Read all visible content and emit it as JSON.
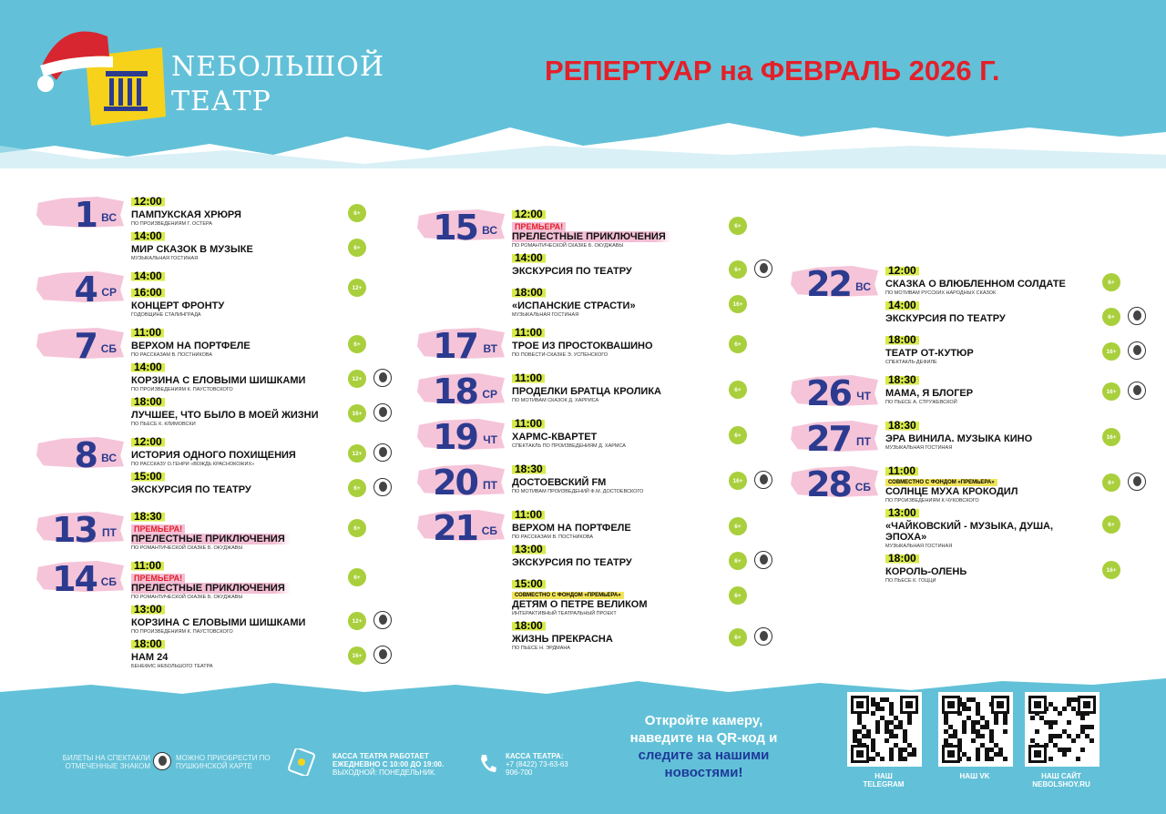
{
  "header": {
    "logo": [
      "NЕБОЛЬШОЙ",
      "ТЕАТР"
    ],
    "title": "РЕПЕРТУАР на ФЕВРАЛЬ 2026 Г."
  },
  "columns": [
    {
      "days": [
        {
          "day": "1",
          "weekday": "ВС",
          "events": [
            {
              "times": [
                "12:00"
              ],
              "title": "ПАМПУКСКАЯ ХРЮРЯ",
              "subtitle": "ПО ПРОИЗВЕДЕНИЯМ Г. ОСТЕРА",
              "age": "6+",
              "pushkin": false
            },
            {
              "times": [
                "14:00"
              ],
              "title": "МИР СКАЗОК В МУЗЫКЕ",
              "subtitle": "МУЗЫКАЛЬНАЯ ГОСТИНАЯ",
              "age": "6+",
              "pushkin": false
            }
          ]
        },
        {
          "day": "4",
          "weekday": "СР",
          "events": [
            {
              "times": [
                "14:00",
                "16:00"
              ],
              "title": "КОНЦЕРТ ФРОНТУ",
              "subtitle": "ГОДОВЩИНЕ СТАЛИНГРАДА",
              "age": "12+",
              "pushkin": false
            }
          ]
        },
        {
          "day": "7",
          "weekday": "СБ",
          "events": [
            {
              "times": [
                "11:00"
              ],
              "title": "ВЕРХОМ НА ПОРТФЕЛЕ",
              "subtitle": "ПО РАССКАЗАМ В. ПОСТНИКОВА",
              "age": "6+",
              "pushkin": false
            },
            {
              "times": [
                "14:00"
              ],
              "title": "КОРЗИНА С ЕЛОВЫМИ ШИШКАМИ",
              "subtitle": "ПО ПРОИЗВЕДЕНИЯМ К. ПАУСТОВСКОГО",
              "age": "12+",
              "pushkin": true
            },
            {
              "times": [
                "18:00"
              ],
              "title": "ЛУЧШЕЕ, ЧТО БЫЛО В МОЕЙ ЖИЗНИ",
              "subtitle": "ПО ПЬЕСЕ К. КЛИМОВСКИ",
              "age": "16+",
              "pushkin": true
            }
          ]
        },
        {
          "day": "8",
          "weekday": "ВС",
          "events": [
            {
              "times": [
                "12:00"
              ],
              "title": "ИСТОРИЯ ОДНОГО ПОХИЩЕНИЯ",
              "subtitle": "ПО РАССКАЗУ О.ГЕНРИ «ВОЖДЬ КРАСНОКОЖИХ»",
              "age": "12+",
              "pushkin": true
            },
            {
              "times": [
                "15:00"
              ],
              "title": "ЭКСКУРСИЯ ПО ТЕАТРУ",
              "age": "6+",
              "pushkin": true
            }
          ]
        },
        {
          "day": "13",
          "weekday": "ПТ",
          "events": [
            {
              "times": [
                "18:30"
              ],
              "badge": "ПРЕМЬЕРА!",
              "title": "ПРЕЛЕСТНЫЕ ПРИКЛЮЧЕНИЯ",
              "subtitle": "ПО РОМАНТИЧЕСКОЙ СКАЗКЕ Б. ОКУДЖАВЫ",
              "age": "6+",
              "pushkin": false
            }
          ]
        },
        {
          "day": "14",
          "weekday": "СБ",
          "events": [
            {
              "times": [
                "11:00"
              ],
              "badge": "ПРЕМЬЕРА!",
              "title": "ПРЕЛЕСТНЫЕ ПРИКЛЮЧЕНИЯ",
              "subtitle": "ПО РОМАНТИЧЕСКОЙ СКАЗКЕ Б. ОКУДЖАВЫ",
              "age": "6+",
              "pushkin": false
            },
            {
              "times": [
                "13:00"
              ],
              "title": "КОРЗИНА С ЕЛОВЫМИ ШИШКАМИ",
              "subtitle": "ПО ПРОИЗВЕДЕНИЯМ К. ПАУСТОВСКОГО",
              "age": "12+",
              "pushkin": true
            },
            {
              "times": [
                "18:00"
              ],
              "title": "НАМ 24",
              "subtitle": "БЕНЕФИС НЕБОЛЬШОГО ТЕАТРА",
              "age": "16+",
              "pushkin": true
            }
          ]
        }
      ]
    },
    {
      "days": [
        {
          "day": "15",
          "weekday": "ВС",
          "events": [
            {
              "times": [
                "12:00"
              ],
              "badge": "ПРЕМЬЕРА!",
              "title": "ПРЕЛЕСТНЫЕ ПРИКЛЮЧЕНИЯ",
              "subtitle": "ПО РОМАНТИЧЕСКОЙ СКАЗКЕ Б. ОКУДЖАВЫ",
              "age": "6+",
              "pushkin": false
            },
            {
              "times": [
                "14:00"
              ],
              "title": "ЭКСКУРСИЯ ПО ТЕАТРУ",
              "age": "6+",
              "pushkin": true
            },
            {
              "times": [
                "18:00"
              ],
              "title": "«ИСПАНСКИЕ СТРАСТИ»",
              "subtitle": "МУЗЫКАЛЬНАЯ ГОСТИНАЯ",
              "age": "16+",
              "pushkin": false
            }
          ]
        },
        {
          "day": "17",
          "weekday": "ВТ",
          "events": [
            {
              "times": [
                "11:00"
              ],
              "title": "ТРОЕ ИЗ ПРОСТОКВАШИНО",
              "subtitle": "ПО ПОВЕСТИ-СКАЗКЕ Э. УСПЕНСКОГО",
              "age": "6+",
              "pushkin": false
            }
          ]
        },
        {
          "day": "18",
          "weekday": "СР",
          "events": [
            {
              "times": [
                "11:00"
              ],
              "title": "ПРОДЕЛКИ БРАТЦА КРОЛИКА",
              "subtitle": "ПО МОТИВАМ СКАЗОК Д. ХАРРИСА",
              "age": "6+",
              "pushkin": false
            }
          ]
        },
        {
          "day": "19",
          "weekday": "ЧТ",
          "events": [
            {
              "times": [
                "11:00"
              ],
              "title": "ХАРМС-КВАРТЕТ",
              "subtitle": "СПЕКТАКЛЬ ПО ПРОИЗВЕДЕНИЯМ Д. ХАРМСА",
              "age": "6+",
              "pushkin": false
            }
          ]
        },
        {
          "day": "20",
          "weekday": "ПТ",
          "events": [
            {
              "times": [
                "18:30"
              ],
              "title": "ДОСТОЕВСКИЙ FM",
              "subtitle": "ПО МОТИВАМ ПРОИЗВЕДЕНИЙ Ф.М. ДОСТОЕВСКОГО",
              "age": "16+",
              "pushkin": true
            }
          ]
        },
        {
          "day": "21",
          "weekday": "СБ",
          "events": [
            {
              "times": [
                "11:00"
              ],
              "title": "ВЕРХОМ НА ПОРТФЕЛЕ",
              "subtitle": "ПО РАССКАЗАМ В. ПОСТНИКОВА",
              "age": "6+",
              "pushkin": false
            },
            {
              "times": [
                "13:00"
              ],
              "title": "ЭКСКУРСИЯ ПО ТЕАТРУ",
              "age": "6+",
              "pushkin": true
            },
            {
              "times": [
                "15:00"
              ],
              "partner": "СОВМЕСТНО С ФОНДОМ «ПРЕМЬЕРА»",
              "title": "ДЕТЯМ О ПЕТРЕ ВЕЛИКОМ",
              "subtitle": "ИНТЕРАКТИВНЫЙ ТЕАТРАЛЬНЫЙ ПРОЕКТ",
              "age": "6+",
              "pushkin": false
            },
            {
              "times": [
                "18:00"
              ],
              "title": "ЖИЗНЬ ПРЕКРАСНА",
              "subtitle": "ПО ПЬЕСЕ Н. ЭРДМАНА",
              "age": "6+",
              "pushkin": true
            }
          ]
        }
      ]
    },
    {
      "days": [
        {
          "day": "22",
          "weekday": "ВС",
          "events": [
            {
              "times": [
                "12:00"
              ],
              "title": "СКАЗКА О ВЛЮБЛЕННОМ СОЛДАТЕ",
              "subtitle": "ПО МОТИВАМ РУССКИХ НАРОДНЫХ СКАЗОК",
              "age": "6+",
              "pushkin": false
            },
            {
              "times": [
                "14:00"
              ],
              "title": "ЭКСКУРСИЯ ПО ТЕАТРУ",
              "age": "6+",
              "pushkin": true
            },
            {
              "times": [
                "18:00"
              ],
              "title": "ТЕАТР ОТ-КУТЮР",
              "subtitle": "СПЕКТАКЛЬ-ДЕФИЛЕ",
              "age": "16+",
              "pushkin": true
            }
          ]
        },
        {
          "day": "26",
          "weekday": "ЧТ",
          "events": [
            {
              "times": [
                "18:30"
              ],
              "title": "МАМА, Я БЛОГЕР",
              "subtitle": "ПО ПЬЕСЕ А. СТРУЖЕВСКОЙ",
              "age": "16+",
              "pushkin": true
            }
          ]
        },
        {
          "day": "27",
          "weekday": "ПТ",
          "events": [
            {
              "times": [
                "18:30"
              ],
              "title": "ЭРА ВИНИЛА. МУЗЫКА КИНО",
              "subtitle": "МУЗЫКАЛЬНАЯ ГОСТИНАЯ",
              "age": "16+",
              "pushkin": false
            }
          ]
        },
        {
          "day": "28",
          "weekday": "СБ",
          "events": [
            {
              "times": [
                "11:00"
              ],
              "partner": "СОВМЕСТНО С ФОНДОМ «ПРЕМЬЕРА»",
              "title": "СОЛНЦЕ МУХА КРОКОДИЛ",
              "subtitle": "ПО ПРОИЗВЕДЕНИЯМ К.ЧУКОВСКОГО",
              "age": "6+",
              "pushkin": true
            },
            {
              "times": [
                "13:00"
              ],
              "title": "«ЧАЙКОВСКИЙ - МУЗЫКА, ДУША, ЭПОХА»",
              "subtitle": "МУЗЫКАЛЬНАЯ ГОСТИНАЯ",
              "age": "6+",
              "pushkin": false
            },
            {
              "times": [
                "18:00"
              ],
              "title": "КОРОЛЬ-ОЛЕНЬ",
              "subtitle": "ПО ПЬЕСЕ К. ГОЦЦИ",
              "age": "16+",
              "pushkin": false
            }
          ]
        }
      ]
    }
  ],
  "footer": {
    "pushkin_note": [
      "БИЛЕТЫ НА СПЕКТАКЛИ ОТМЕЧЕННЫЕ ЗНАКОМ",
      "МОЖНО ПРИОБРЕСТИ ПО ПУШКИНСКОЙ КАРТЕ"
    ],
    "box_office_hours": [
      "КАССА ТЕАТРА РАБОТАЕТ",
      "ЕЖЕДНЕВНО С 10:00 ДО 19:00.",
      "ВЫХОДНОЙ: ПОНЕДЕЛЬНИК."
    ],
    "box_office_phone": [
      "КАССА ТЕАТРА:",
      "+7 (8422) 73-63-63",
      "906-700"
    ],
    "qr_call": {
      "lead": "Откройте камеру, наведите на QR-код",
      "and": "и",
      "follow": "следите за нашими новостями!"
    },
    "qr_labels": [
      [
        "НАШ",
        "TELEGRAM"
      ],
      [
        "НАШ VK"
      ],
      [
        "НАШ САЙТ",
        "NEBOLSHOY.RU"
      ]
    ]
  }
}
